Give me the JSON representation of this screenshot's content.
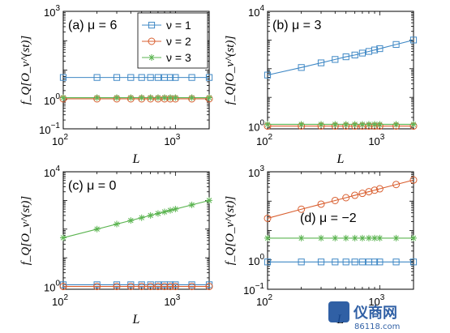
{
  "colors": {
    "nu1": "#3f88c5",
    "nu2": "#d95f30",
    "nu3": "#5bb450"
  },
  "legend": {
    "entries": [
      "ν = 1",
      "ν = 2",
      "ν = 3"
    ],
    "placement": "top-right of panel (a)"
  },
  "watermark": {
    "brand": "仪商网",
    "url": "86118.com"
  },
  "chart_data": [
    {
      "type": "line",
      "panel_label": "(a)",
      "mu_label": "μ = 6",
      "xlabel": "L",
      "ylabel": "f_Q[O_ν^(st)]",
      "xscale": "log",
      "yscale": "log",
      "xlim": [
        100,
        2000
      ],
      "ylim": [
        0.1,
        1000
      ],
      "xticks": [
        100,
        1000
      ],
      "xtick_labels": [
        "10^2",
        "10^3"
      ],
      "yticks": [
        0.1,
        1,
        1000
      ],
      "ytick_labels": [
        "10^-1",
        "10^0",
        "10^3"
      ],
      "x": [
        100,
        200,
        300,
        400,
        500,
        600,
        700,
        800,
        900,
        1000,
        1400,
        2000
      ],
      "series": [
        {
          "name": "ν = 1",
          "marker": "square",
          "values": [
            5.6,
            5.6,
            5.6,
            5.6,
            5.6,
            5.6,
            5.6,
            5.6,
            5.6,
            5.6,
            5.6,
            5.6
          ]
        },
        {
          "name": "ν = 2",
          "marker": "circle",
          "values": [
            1.05,
            1.05,
            1.05,
            1.05,
            1.05,
            1.05,
            1.05,
            1.05,
            1.05,
            1.05,
            1.05,
            1.05
          ]
        },
        {
          "name": "ν = 3",
          "marker": "star",
          "values": [
            1.15,
            1.15,
            1.15,
            1.15,
            1.15,
            1.15,
            1.15,
            1.15,
            1.15,
            1.15,
            1.15,
            1.15
          ]
        }
      ]
    },
    {
      "type": "line",
      "panel_label": "(b)",
      "mu_label": "μ = 3",
      "xlabel": "L",
      "ylabel": "f_Q[O_ν^(st)]",
      "xscale": "log",
      "yscale": "log",
      "xlim": [
        100,
        2000
      ],
      "ylim": [
        0.8,
        10000
      ],
      "xticks": [
        100,
        1000
      ],
      "xtick_labels": [
        "10^2",
        "10^3"
      ],
      "yticks": [
        1,
        10000
      ],
      "ytick_labels": [
        "10^0",
        "10^4"
      ],
      "x": [
        100,
        200,
        300,
        400,
        500,
        600,
        700,
        800,
        900,
        1000,
        1400,
        2000
      ],
      "series": [
        {
          "name": "ν = 1",
          "marker": "square",
          "values": [
            60,
            110,
            160,
            210,
            260,
            300,
            350,
            400,
            450,
            500,
            700,
            1000
          ]
        },
        {
          "name": "ν = 2",
          "marker": "circle",
          "values": [
            1.0,
            1.0,
            1.0,
            1.0,
            1.0,
            1.0,
            1.0,
            1.0,
            1.0,
            1.0,
            1.0,
            1.0
          ]
        },
        {
          "name": "ν = 3",
          "marker": "star",
          "values": [
            1.15,
            1.15,
            1.15,
            1.15,
            1.15,
            1.15,
            1.15,
            1.15,
            1.15,
            1.15,
            1.15,
            1.15
          ]
        }
      ]
    },
    {
      "type": "line",
      "panel_label": "(c)",
      "mu_label": "μ = 0",
      "xlabel": "L",
      "ylabel": "f_Q[O_ν^(st)]",
      "xscale": "log",
      "yscale": "log",
      "xlim": [
        100,
        2000
      ],
      "ylim": [
        0.8,
        10000
      ],
      "xticks": [
        100,
        1000
      ],
      "xtick_labels": [
        "10^2",
        "10^3"
      ],
      "yticks": [
        1,
        10000
      ],
      "ytick_labels": [
        "10^0",
        "10^4"
      ],
      "x": [
        100,
        200,
        300,
        400,
        500,
        600,
        700,
        800,
        900,
        1000,
        1400,
        2000
      ],
      "series": [
        {
          "name": "ν = 1",
          "marker": "square",
          "values": [
            1.15,
            1.15,
            1.15,
            1.15,
            1.15,
            1.15,
            1.15,
            1.15,
            1.15,
            1.15,
            1.15,
            1.15
          ]
        },
        {
          "name": "ν = 2",
          "marker": "circle",
          "values": [
            1.0,
            1.0,
            1.0,
            1.0,
            1.0,
            1.0,
            1.0,
            1.0,
            1.0,
            1.0,
            1.0,
            1.0
          ]
        },
        {
          "name": "ν = 3",
          "marker": "star",
          "values": [
            50,
            100,
            150,
            200,
            250,
            300,
            350,
            400,
            450,
            500,
            700,
            1000
          ]
        }
      ]
    },
    {
      "type": "line",
      "panel_label": "(d)",
      "mu_label": "μ = −2",
      "xlabel": "L",
      "ylabel": "f_Q[O_ν^(st)]",
      "xscale": "log",
      "yscale": "log",
      "xlim": [
        100,
        2000
      ],
      "ylim": [
        0.1,
        1000
      ],
      "xticks": [
        100,
        1000
      ],
      "xtick_labels": [
        "10^2",
        "10^3"
      ],
      "yticks": [
        0.1,
        1,
        1000
      ],
      "ytick_labels": [
        "10^-1",
        "10^0",
        "10^3"
      ],
      "x": [
        100,
        200,
        300,
        400,
        500,
        600,
        700,
        800,
        900,
        1000,
        1400,
        2000
      ],
      "series": [
        {
          "name": "ν = 1",
          "marker": "square",
          "values": [
            0.85,
            0.85,
            0.85,
            0.85,
            0.85,
            0.85,
            0.85,
            0.85,
            0.85,
            0.85,
            0.85,
            0.85
          ]
        },
        {
          "name": "ν = 2",
          "marker": "circle",
          "values": [
            26,
            53,
            79,
            105,
            131,
            158,
            184,
            210,
            236,
            263,
            368,
            525
          ]
        },
        {
          "name": "ν = 3",
          "marker": "star",
          "values": [
            5.5,
            5.5,
            5.5,
            5.5,
            5.5,
            5.5,
            5.5,
            5.5,
            5.5,
            5.5,
            5.5,
            5.5
          ]
        }
      ]
    }
  ]
}
